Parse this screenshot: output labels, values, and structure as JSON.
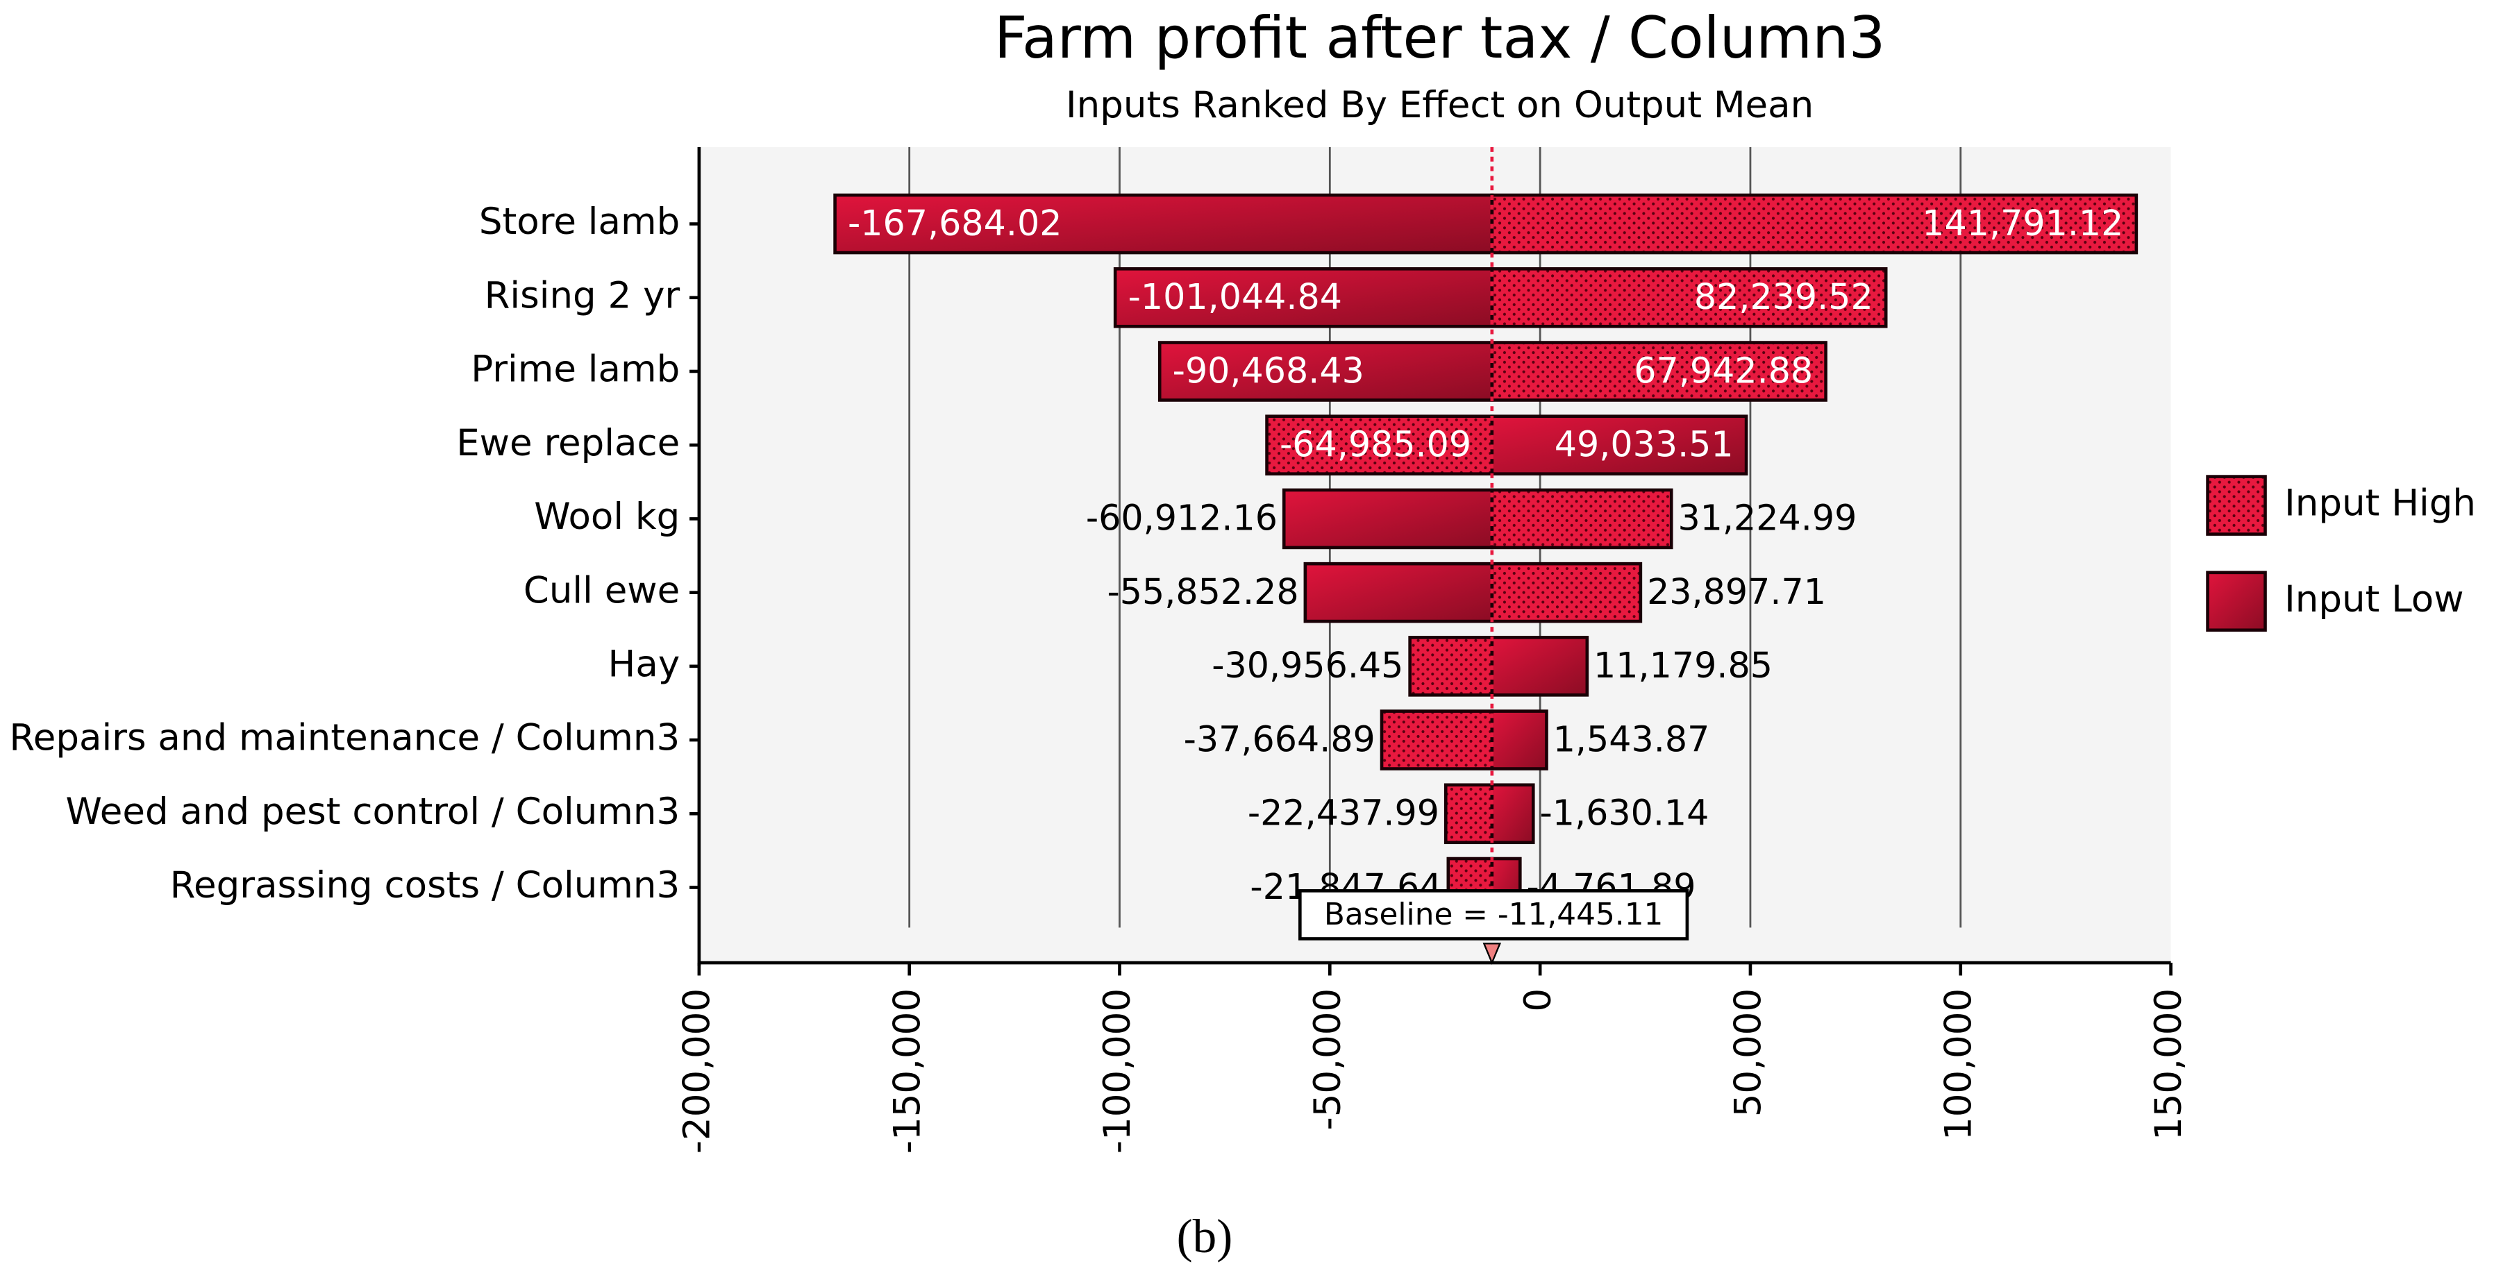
{
  "chart_data": {
    "type": "tornado",
    "title": "Farm profit after tax / Column3",
    "subtitle": "Inputs Ranked By Effect on Output Mean",
    "caption": "(b)",
    "categories": [
      "Store lamb",
      "Rising 2 yr",
      "Prime lamb",
      "Ewe replace",
      "Wool kg",
      "Cull ewe",
      "Hay",
      "Repairs and maintenance / Column3",
      "Weed and pest control / Column3",
      "Regrassing costs / Column3"
    ],
    "series": [
      {
        "name": "Input High",
        "color": "#e8193f",
        "pattern": "dots",
        "values": [
          141791.12,
          82239.52,
          67942.88,
          -64985.09,
          31224.99,
          23897.71,
          -30956.45,
          -37664.89,
          -22437.99,
          -21847.64
        ],
        "value_labels": [
          "141,791.12",
          "82,239.52",
          "67,942.88",
          "-64,985.09",
          "31,224.99",
          "23,897.71",
          "-30,956.45",
          "-37,664.89",
          "-22,437.99",
          "-21,847.64"
        ]
      },
      {
        "name": "Input Low",
        "color": "#b0102e",
        "pattern": "gradient",
        "values": [
          -167684.02,
          -101044.84,
          -90468.43,
          49033.51,
          -60912.16,
          -55852.28,
          11179.85,
          1543.87,
          -1630.14,
          -4761.89
        ],
        "value_labels": [
          "-167,684.02",
          "-101,044.84",
          "-90,468.43",
          "49,033.51",
          "-60,912.16",
          "-55,852.28",
          "11,179.85",
          "1,543.87",
          "-1,630.14",
          "-4,761.89"
        ]
      }
    ],
    "baseline": {
      "value": -11445.11,
      "label": "Baseline = -11,445.11"
    },
    "xlim": [
      -200000,
      150000
    ],
    "xticks": [
      {
        "value": -200000,
        "label": "-200,000"
      },
      {
        "value": -150000,
        "label": "-150,000"
      },
      {
        "value": -100000,
        "label": "-100,000"
      },
      {
        "value": -50000,
        "label": "-50,000"
      },
      {
        "value": 0,
        "label": "0"
      },
      {
        "value": 50000,
        "label": "50,000"
      },
      {
        "value": 100000,
        "label": "100,000"
      },
      {
        "value": 150000,
        "label": "150,000"
      }
    ],
    "grid": true,
    "legend": "right"
  }
}
